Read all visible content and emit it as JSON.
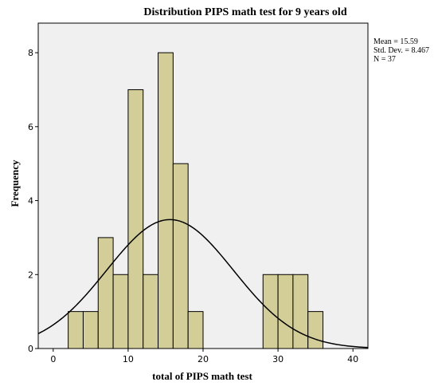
{
  "chart_data": {
    "type": "bar",
    "title": "Distribution PIPS math test for 9 years old",
    "xlabel": "total of PIPS math test",
    "ylabel": "Frequency",
    "xlim": [
      -2,
      42
    ],
    "ylim": [
      0,
      8.8
    ],
    "x_ticks": [
      "0",
      "10",
      "20",
      "30",
      "40"
    ],
    "y_ticks": [
      "0",
      "2",
      "4",
      "6",
      "8"
    ],
    "bin_width": 2,
    "bins": [
      {
        "start": 2,
        "value": 1
      },
      {
        "start": 4,
        "value": 1
      },
      {
        "start": 6,
        "value": 3
      },
      {
        "start": 8,
        "value": 2
      },
      {
        "start": 10,
        "value": 7
      },
      {
        "start": 12,
        "value": 2
      },
      {
        "start": 14,
        "value": 8
      },
      {
        "start": 16,
        "value": 5
      },
      {
        "start": 18,
        "value": 1
      },
      {
        "start": 28,
        "value": 2
      },
      {
        "start": 30,
        "value": 2
      },
      {
        "start": 32,
        "value": 2
      },
      {
        "start": 34,
        "value": 1
      }
    ],
    "normal_curve": {
      "mean": 15.59,
      "sd": 8.467,
      "n": 37
    },
    "stats": {
      "mean_label": "Mean = 15.59",
      "sd_label": "Std. Dev. = 8.467",
      "n_label": "N = 37"
    },
    "grid": false,
    "colors": {
      "plot_background": "#f0f0f0",
      "bar_fill": "#d3ce97",
      "bar_stroke": "#000000",
      "curve": "#000000"
    }
  }
}
